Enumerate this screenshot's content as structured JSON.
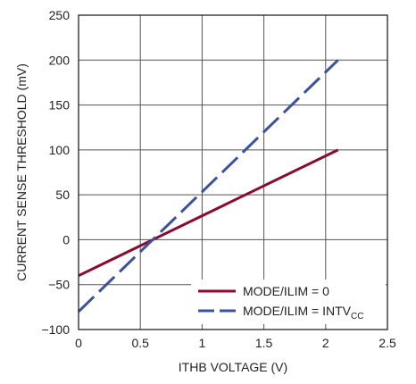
{
  "chart_data": {
    "type": "line",
    "title": "",
    "xlabel": "ITHB VOLTAGE (V)",
    "ylabel": "CURRENT SENSE THRESHOLD (mV)",
    "xlim": [
      0,
      2.5
    ],
    "ylim": [
      -100,
      250
    ],
    "xticks": [
      0,
      0.5,
      1,
      1.5,
      2,
      2.5
    ],
    "xtick_labels": [
      "0",
      "0.5",
      "1",
      "1.5",
      "2",
      "2.5"
    ],
    "yticks": [
      -100,
      -50,
      0,
      50,
      100,
      150,
      200,
      250
    ],
    "ytick_labels": [
      "−100",
      "−50",
      "0",
      "50",
      "100",
      "150",
      "200",
      "250"
    ],
    "grid": true,
    "legend_position": "bottom-right",
    "series": [
      {
        "name": "MODE/ILIM = 0",
        "name_main": "MODE/ILIM = INTV",
        "color": "#8b0a2e",
        "style": "solid",
        "x": [
          0,
          2.1
        ],
        "y": [
          -40,
          100
        ]
      },
      {
        "name": "MODE/ILIM = INTVCC",
        "name_main": "MODE/ILIM = INTV",
        "name_sub": "CC",
        "color": "#3a52a0",
        "style": "dashed",
        "x": [
          0,
          2.1
        ],
        "y": [
          -80,
          200
        ]
      }
    ]
  }
}
